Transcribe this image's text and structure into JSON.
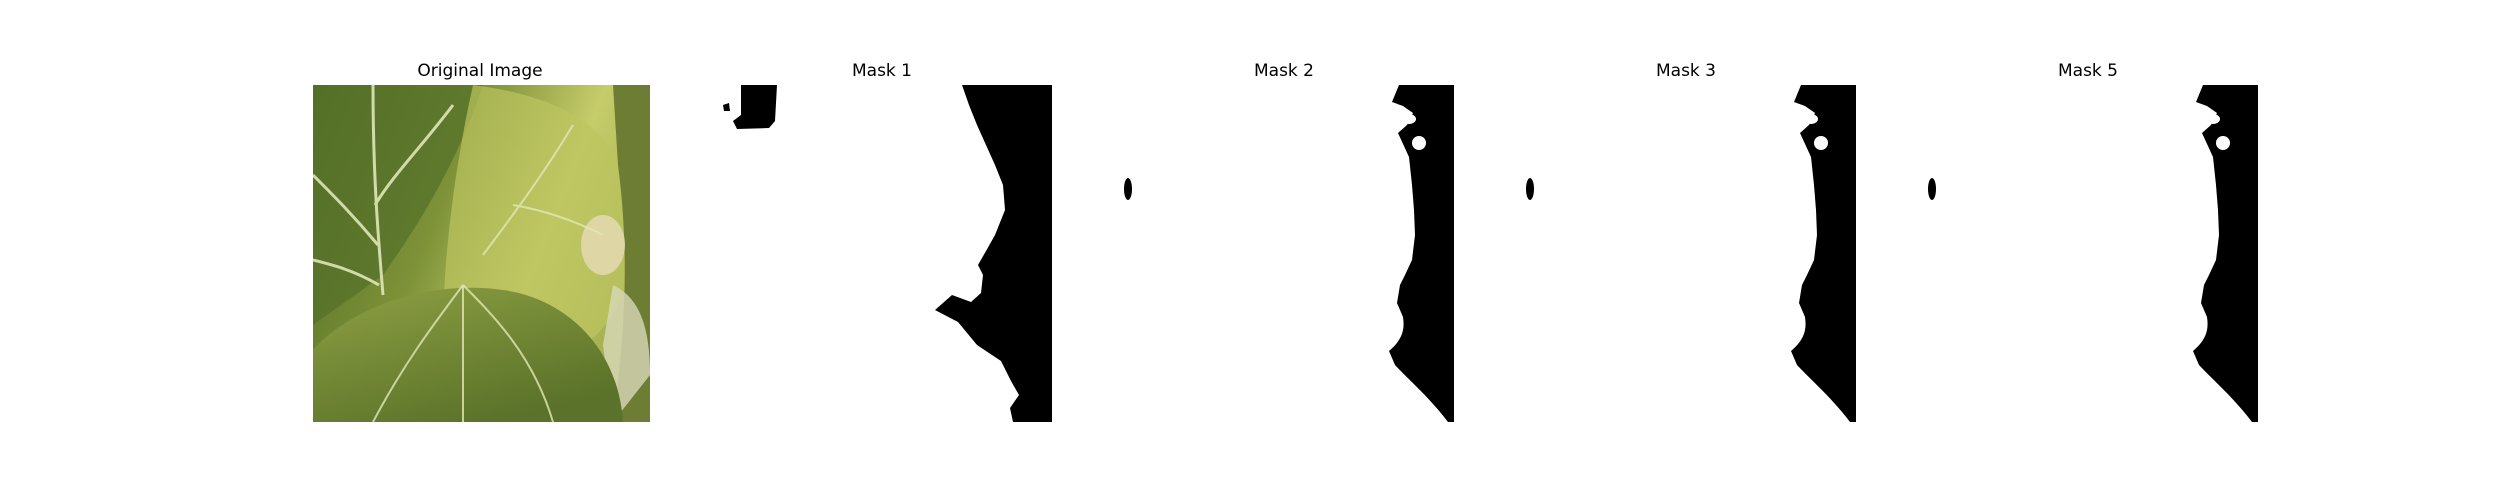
{
  "panels": [
    {
      "title": "Original Image"
    },
    {
      "title": "Mask 1"
    },
    {
      "title": "Mask 2"
    },
    {
      "title": "Mask 3"
    },
    {
      "title": "Mask 5"
    }
  ],
  "colors": {
    "mask_foreground": "#ffffff",
    "mask_background": "#000000",
    "leaf_dark": "#5f7a2c",
    "leaf_light": "#c9cf6a"
  }
}
